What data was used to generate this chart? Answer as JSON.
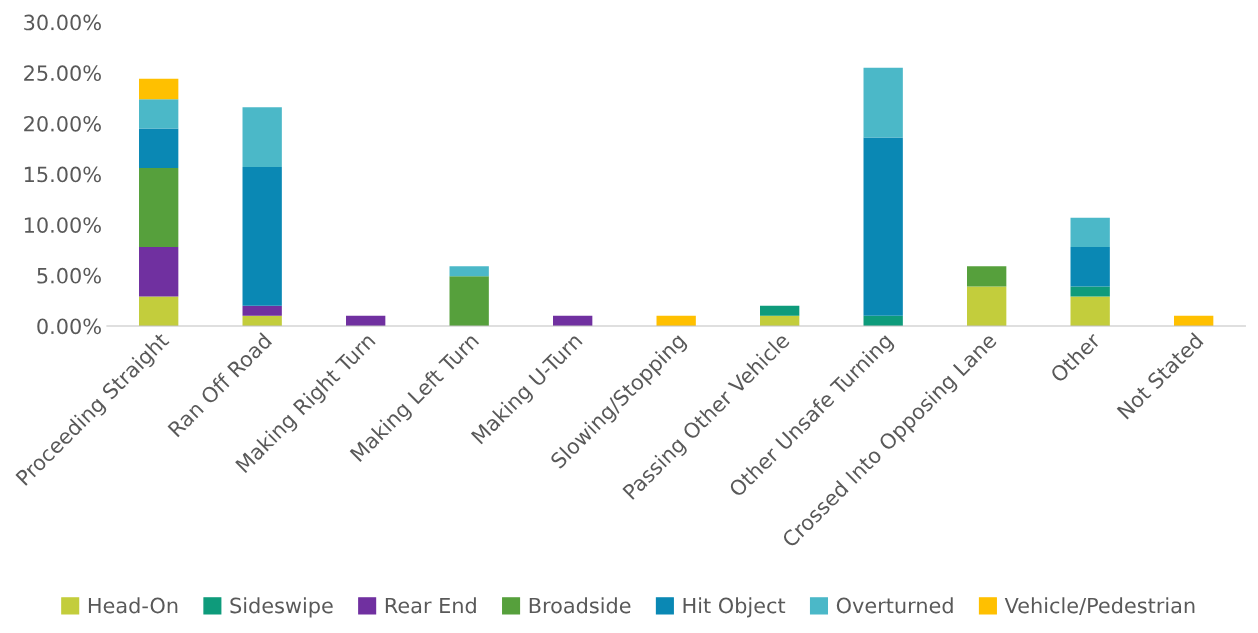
{
  "chart_data": {
    "type": "bar",
    "stacked": true,
    "categories": [
      "Proceeding Straight",
      "Ran Off Road",
      "Making Right Turn",
      "Making Left Turn",
      "Making U-Turn",
      "Slowing/Stopping",
      "Passing Other Vehicle",
      "Other Unsafe Turning",
      "Crossed Into Opposing Lane",
      "Other",
      "Not Stated"
    ],
    "series": [
      {
        "name": "Head-On",
        "color": "#c3cd3c",
        "values": [
          2.9,
          1.0,
          null,
          null,
          null,
          null,
          1.0,
          null,
          3.9,
          2.9,
          null
        ]
      },
      {
        "name": "Sideswipe",
        "color": "#0e9b7b",
        "values": [
          null,
          null,
          null,
          null,
          null,
          null,
          1.0,
          1.0,
          null,
          1.0,
          null
        ]
      },
      {
        "name": "Rear End",
        "color": "#7030a0",
        "values": [
          4.9,
          1.0,
          1.0,
          null,
          1.0,
          null,
          null,
          null,
          null,
          null,
          null
        ]
      },
      {
        "name": "Broadside",
        "color": "#56a03c",
        "values": [
          7.8,
          null,
          null,
          4.9,
          null,
          null,
          null,
          null,
          2.0,
          null,
          null
        ]
      },
      {
        "name": "Hit Object",
        "color": "#0a88b4",
        "values": [
          3.9,
          13.7,
          null,
          null,
          null,
          null,
          null,
          17.6,
          null,
          3.9,
          null
        ]
      },
      {
        "name": "Overturned",
        "color": "#4bb8c8",
        "values": [
          2.9,
          5.9,
          null,
          1.0,
          null,
          null,
          null,
          6.9,
          null,
          2.9,
          null
        ]
      },
      {
        "name": "Vehicle/Pedestrian",
        "color": "#ffc000",
        "values": [
          2.0,
          null,
          null,
          null,
          null,
          1.0,
          null,
          null,
          null,
          null,
          1.0
        ]
      }
    ],
    "ylim": [
      0,
      30
    ],
    "yticks": [
      {
        "value": 0,
        "label": "0.00%"
      },
      {
        "value": 5,
        "label": "5.00%"
      },
      {
        "value": 10,
        "label": "10.00%"
      },
      {
        "value": 15,
        "label": "15.00%"
      },
      {
        "value": 20,
        "label": "20.00%"
      },
      {
        "value": 25,
        "label": "25.00%"
      },
      {
        "value": 30,
        "label": "30.00%"
      }
    ],
    "legend": "bottom"
  }
}
